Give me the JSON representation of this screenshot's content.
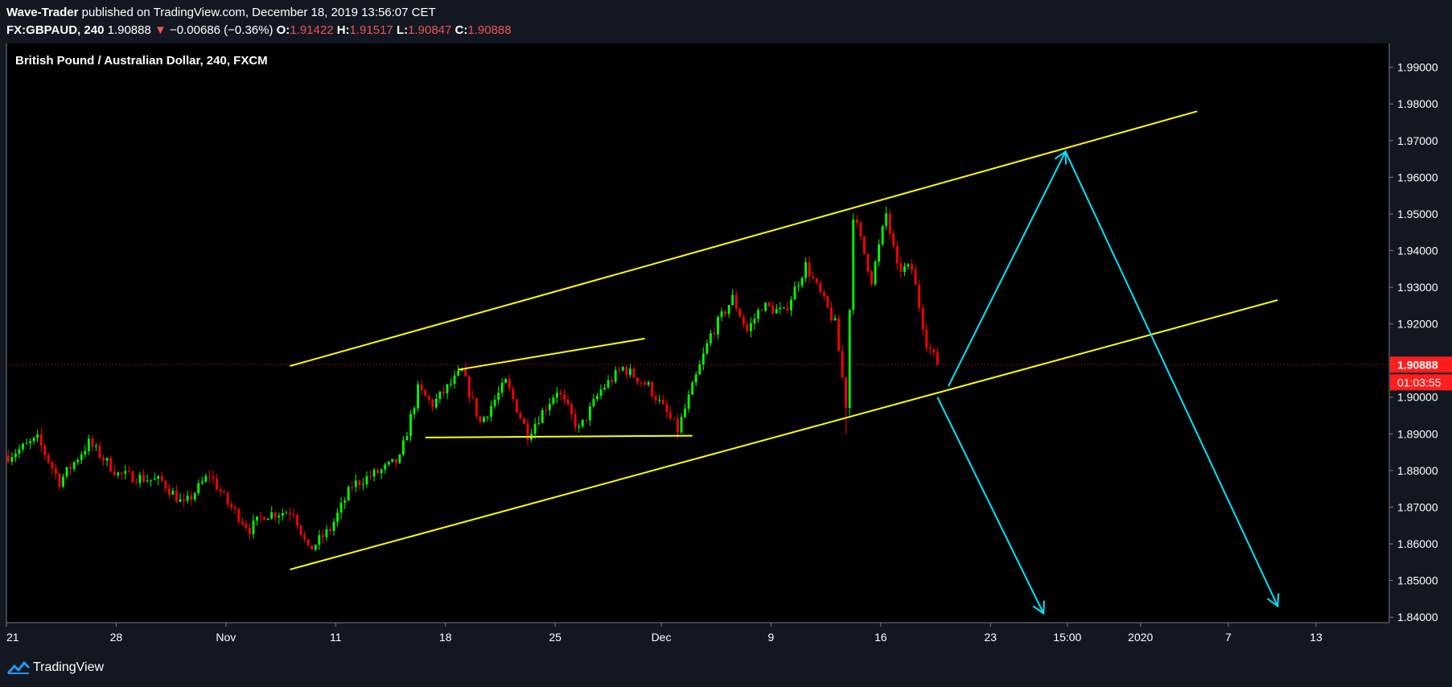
{
  "header": {
    "publisher": "Wave-Trader",
    "published_text": " published on TradingView.com, December 18, 2019 13:56:07 CET",
    "symbol": "FX:GBPAUD, 240",
    "last": "1.90888",
    "change_arrow": "▼",
    "change": "−0.00686 (−0.36%)",
    "o_label": "O:",
    "o_value": "1.91422",
    "h_label": "H:",
    "h_value": "1.91517",
    "l_label": "L:",
    "l_value": "1.90847",
    "c_label": "C:",
    "c_value": "1.90888"
  },
  "footer": {
    "brand": "TradingView",
    "logo_icon": "tradingview-logo-icon"
  },
  "chart_data": {
    "type": "candlestick",
    "title": "British Pound / Australian Dollar, 240, FXCM",
    "colors": {
      "background": "#000000",
      "up": "#00ff00",
      "down": "#ff0000",
      "trendline": "#ffff00",
      "projection": "#00e5ff",
      "price_line": "#ff0000"
    },
    "ylim": [
      1.8385,
      1.9965
    ],
    "y_ticks": [
      1.99,
      1.98,
      1.97,
      1.96,
      1.95,
      1.94,
      1.93,
      1.92,
      1.91,
      1.9,
      1.89,
      1.88,
      1.87,
      1.86,
      1.85,
      1.84
    ],
    "y_tick_labels": [
      "1.99000",
      "1.98000",
      "1.97000",
      "1.96000",
      "1.95000",
      "1.94000",
      "1.93000",
      "1.92000",
      "1.91000",
      "1.90000",
      "1.89000",
      "1.88000",
      "1.87000",
      "1.86000",
      "1.85000",
      "1.84000"
    ],
    "x_ticks": [
      {
        "t": -0.5,
        "label": "21"
      },
      {
        "t": 29.5,
        "label": "28"
      },
      {
        "t": 59.5,
        "label": "Nov"
      },
      {
        "t": 89.5,
        "label": "11"
      },
      {
        "t": 119.5,
        "label": "18"
      },
      {
        "t": 149.5,
        "label": "25"
      },
      {
        "t": 178.5,
        "label": "Dec"
      },
      {
        "t": 208.5,
        "label": "9"
      },
      {
        "t": 238.5,
        "label": "16"
      },
      {
        "t": 268.5,
        "label": "23"
      },
      {
        "t": 289.5,
        "label": "15:00"
      },
      {
        "t": 309.5,
        "label": "2020"
      },
      {
        "t": 333.5,
        "label": "7"
      },
      {
        "t": 357.5,
        "label": "13"
      }
    ],
    "xlim": [
      -0.5,
      377.5
    ],
    "price_marker": {
      "value": 1.90888,
      "label": "1.90888",
      "countdown": "01:03:55"
    },
    "anchors": [
      [
        0,
        1.884
      ],
      [
        8,
        1.8885
      ],
      [
        14,
        1.877
      ],
      [
        22,
        1.8875
      ],
      [
        30,
        1.879
      ],
      [
        42,
        1.877
      ],
      [
        48,
        1.8705
      ],
      [
        55,
        1.879
      ],
      [
        60,
        1.871
      ],
      [
        66,
        1.864
      ],
      [
        70,
        1.868
      ],
      [
        78,
        1.869
      ],
      [
        82,
        1.858
      ],
      [
        88,
        1.864
      ],
      [
        94,
        1.876
      ],
      [
        102,
        1.88
      ],
      [
        107,
        1.883
      ],
      [
        112,
        1.902
      ],
      [
        116,
        1.898
      ],
      [
        124,
        1.907
      ],
      [
        129,
        1.893
      ],
      [
        136,
        1.904
      ],
      [
        142,
        1.89
      ],
      [
        150,
        1.902
      ],
      [
        156,
        1.891
      ],
      [
        162,
        1.902
      ],
      [
        168,
        1.908
      ],
      [
        175,
        1.903
      ],
      [
        183,
        1.891
      ],
      [
        192,
        1.917
      ],
      [
        198,
        1.927
      ],
      [
        202,
        1.918
      ],
      [
        206,
        1.925
      ],
      [
        212,
        1.923
      ],
      [
        218,
        1.936
      ],
      [
        222,
        1.928
      ],
      [
        226,
        1.92
      ],
      [
        229,
        1.898
      ],
      [
        231,
        1.95
      ],
      [
        236,
        1.932
      ],
      [
        240,
        1.95
      ],
      [
        243,
        1.935
      ],
      [
        247,
        1.935
      ],
      [
        251,
        1.915
      ],
      [
        254,
        1.9089
      ]
    ],
    "lines": [
      {
        "kind": "channel-upper",
        "points": [
          [
            77,
            1.9085
          ],
          [
            325,
            1.978
          ]
        ]
      },
      {
        "kind": "channel-lower",
        "points": [
          [
            77,
            1.853
          ],
          [
            347,
            1.9265
          ]
        ]
      },
      {
        "kind": "triangle-top",
        "points": [
          [
            123,
            1.9075
          ],
          [
            174,
            1.916
          ]
        ]
      },
      {
        "kind": "triangle-bottom",
        "points": [
          [
            114,
            1.889
          ],
          [
            187,
            1.8895
          ]
        ]
      }
    ],
    "projections": [
      {
        "kind": "up-then-down",
        "points": [
          [
            257,
            1.903
          ],
          [
            289,
            1.967
          ],
          [
            347,
            1.843
          ]
        ]
      },
      {
        "kind": "down",
        "points": [
          [
            254,
            1.9
          ],
          [
            283,
            1.841
          ]
        ]
      }
    ]
  }
}
